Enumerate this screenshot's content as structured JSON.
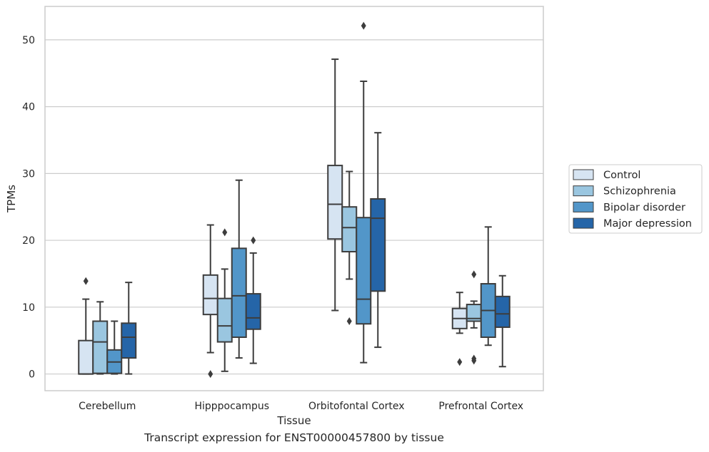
{
  "caption": "Transcript expression for ENST00000457800 by tissue",
  "chart_data": {
    "type": "box",
    "title": "",
    "xlabel": "Tissue",
    "ylabel": "TPMs",
    "ylim": [
      -2.5,
      55
    ],
    "yticks": [
      0,
      10,
      20,
      30,
      40,
      50
    ],
    "grid": true,
    "legend_position": "right",
    "categories": [
      "Cerebellum",
      "Hipppocampus",
      "Orbitofontal Cortex",
      "Prefrontal Cortex"
    ],
    "series": [
      {
        "name": "Control",
        "color": "#d6e4f2",
        "boxes": [
          {
            "whislo": 0,
            "q1": 0,
            "med": 0,
            "q3": 5.0,
            "whishi": 11.2,
            "fliers": [
              13.9
            ]
          },
          {
            "whislo": 3.2,
            "q1": 8.9,
            "med": 11.3,
            "q3": 14.8,
            "whishi": 22.3,
            "fliers": [
              0
            ]
          },
          {
            "whislo": 9.5,
            "q1": 20.2,
            "med": 25.4,
            "q3": 31.2,
            "whishi": 47.1,
            "fliers": []
          },
          {
            "whislo": 6.1,
            "q1": 6.8,
            "med": 8.3,
            "q3": 9.8,
            "whishi": 12.2,
            "fliers": [
              1.8
            ]
          }
        ]
      },
      {
        "name": "Schizophrenia",
        "color": "#9ac6e0",
        "boxes": [
          {
            "whislo": 0,
            "q1": 0.1,
            "med": 4.8,
            "q3": 7.9,
            "whishi": 10.8,
            "fliers": []
          },
          {
            "whislo": 0.4,
            "q1": 4.8,
            "med": 7.2,
            "q3": 11.3,
            "whishi": 15.7,
            "fliers": [
              21.2
            ]
          },
          {
            "whislo": 14.2,
            "q1": 18.3,
            "med": 21.9,
            "q3": 25.0,
            "whishi": 30.3,
            "fliers": [
              7.9
            ]
          },
          {
            "whislo": 6.9,
            "q1": 7.9,
            "med": 8.3,
            "q3": 10.4,
            "whishi": 10.9,
            "fliers": [
              14.9,
              2.0,
              2.3
            ]
          }
        ]
      },
      {
        "name": "Bipolar disorder",
        "color": "#5296c9",
        "boxes": [
          {
            "whislo": 0,
            "q1": 0.1,
            "med": 1.8,
            "q3": 3.6,
            "whishi": 7.9,
            "fliers": []
          },
          {
            "whislo": 2.4,
            "q1": 5.5,
            "med": 11.7,
            "q3": 18.8,
            "whishi": 29.0,
            "fliers": []
          },
          {
            "whislo": 1.7,
            "q1": 7.5,
            "med": 11.2,
            "q3": 23.4,
            "whishi": 43.8,
            "fliers": [
              52.1
            ]
          },
          {
            "whislo": 4.3,
            "q1": 5.5,
            "med": 9.5,
            "q3": 13.5,
            "whishi": 22.0,
            "fliers": []
          }
        ]
      },
      {
        "name": "Major depression",
        "color": "#2565a8",
        "boxes": [
          {
            "whislo": 0,
            "q1": 2.4,
            "med": 5.5,
            "q3": 7.6,
            "whishi": 13.7,
            "fliers": []
          },
          {
            "whislo": 1.6,
            "q1": 6.7,
            "med": 8.4,
            "q3": 12.0,
            "whishi": 18.1,
            "fliers": [
              20.0
            ]
          },
          {
            "whislo": 4.0,
            "q1": 12.4,
            "med": 23.3,
            "q3": 26.2,
            "whishi": 36.1,
            "fliers": []
          },
          {
            "whislo": 1.1,
            "q1": 7.0,
            "med": 9.0,
            "q3": 11.6,
            "whishi": 14.7,
            "fliers": []
          }
        ]
      }
    ]
  }
}
